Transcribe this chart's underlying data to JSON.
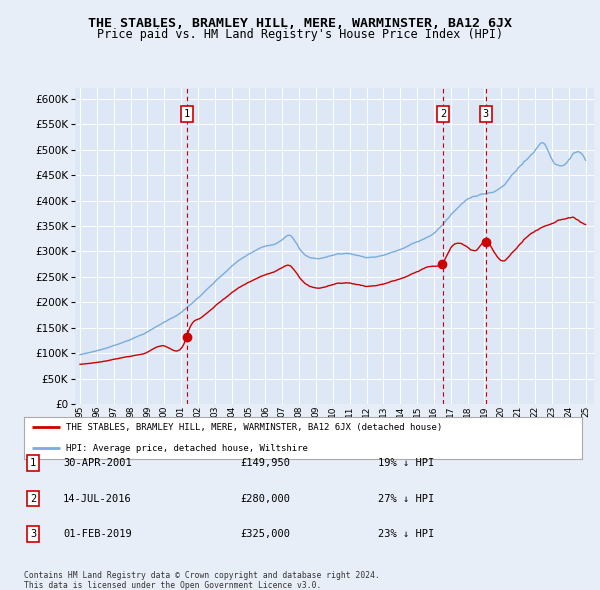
{
  "title": "THE STABLES, BRAMLEY HILL, MERE, WARMINSTER, BA12 6JX",
  "subtitle": "Price paid vs. HM Land Registry's House Price Index (HPI)",
  "legend_label_red": "THE STABLES, BRAMLEY HILL, MERE, WARMINSTER, BA12 6JX (detached house)",
  "legend_label_blue": "HPI: Average price, detached house, Wiltshire",
  "footer1": "Contains HM Land Registry data © Crown copyright and database right 2024.",
  "footer2": "This data is licensed under the Open Government Licence v3.0.",
  "transactions": [
    {
      "num": 1,
      "date": "30-APR-2001",
      "price": "£149,950",
      "pct": "19% ↓ HPI",
      "year": 2001.33
    },
    {
      "num": 2,
      "date": "14-JUL-2016",
      "price": "£280,000",
      "pct": "27% ↓ HPI",
      "year": 2016.54
    },
    {
      "num": 3,
      "date": "01-FEB-2019",
      "price": "£325,000",
      "pct": "23% ↓ HPI",
      "year": 2019.08
    }
  ],
  "ylim": [
    0,
    620000
  ],
  "xlim": [
    1994.7,
    2025.5
  ],
  "background_color": "#e8eef8",
  "plot_bg": "#dde7f5",
  "red_color": "#cc0000",
  "blue_color": "#7aaddc",
  "dashed_color": "#cc0000",
  "title_fontsize": 9.5,
  "subtitle_fontsize": 8.5
}
